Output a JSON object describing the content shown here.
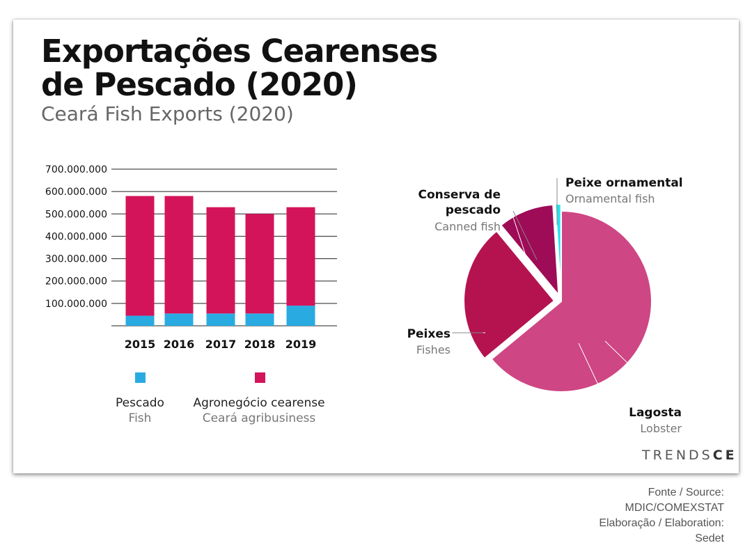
{
  "header": {
    "title_line1": "Exportações Cearenses",
    "title_line2": "de Pescado (2020)",
    "subtitle": "Ceará Fish Exports (2020)"
  },
  "legend": [
    {
      "label_pt": "Pescado",
      "label_en": "Fish",
      "color": "#29ABE2"
    },
    {
      "label_pt": "Agronegócio cearense",
      "label_en": "Ceará agribusiness",
      "color": "#D4145A"
    }
  ],
  "brand": {
    "part1": "TRENDS",
    "part2": "CE"
  },
  "source": [
    "Fonte / Source:",
    "MDIC/COMEXSTAT",
    "Elaboração / Elaboration:",
    "Sedet"
  ],
  "chart_data": [
    {
      "type": "bar",
      "stacked": true,
      "categories": [
        "2015",
        "2016",
        "2017",
        "2018",
        "2019"
      ],
      "series": [
        {
          "name": "Pescado",
          "color": "#29ABE2",
          "values": [
            45000000,
            55000000,
            55000000,
            55000000,
            90000000
          ]
        },
        {
          "name": "Agronegócio cearense",
          "color": "#D4145A",
          "values": [
            535000000,
            525000000,
            475000000,
            445000000,
            440000000
          ]
        }
      ],
      "ylim": [
        0,
        700000000
      ],
      "yticks": [
        {
          "value": 100000000,
          "label": "100.000.000"
        },
        {
          "value": 200000000,
          "label": "200.000.000"
        },
        {
          "value": 300000000,
          "label": "300.000.000"
        },
        {
          "value": 400000000,
          "label": "400.000.000"
        },
        {
          "value": 500000000,
          "label": "500.000.000"
        },
        {
          "value": 600000000,
          "label": "600.000.000"
        },
        {
          "value": 700000000,
          "label": "700.000.000"
        }
      ],
      "grid": true,
      "legend": "bottom"
    },
    {
      "type": "pie",
      "slices": [
        {
          "label_pt": "Lagosta",
          "label_en": "Lobster",
          "value": 64,
          "color": "#CE4683"
        },
        {
          "label_pt": "Peixes",
          "label_en": "Fishes",
          "value": 25,
          "color": "#B4134F",
          "exploded": true
        },
        {
          "label_pt": "Conserva de pescado",
          "label_en": "Canned fish",
          "value": 10,
          "color": "#9E0B57",
          "exploded": true
        },
        {
          "label_pt": "Peixe ornamental",
          "label_en": "Ornamental fish",
          "value": 1,
          "color": "#28E1EE",
          "exploded": true
        }
      ]
    }
  ]
}
